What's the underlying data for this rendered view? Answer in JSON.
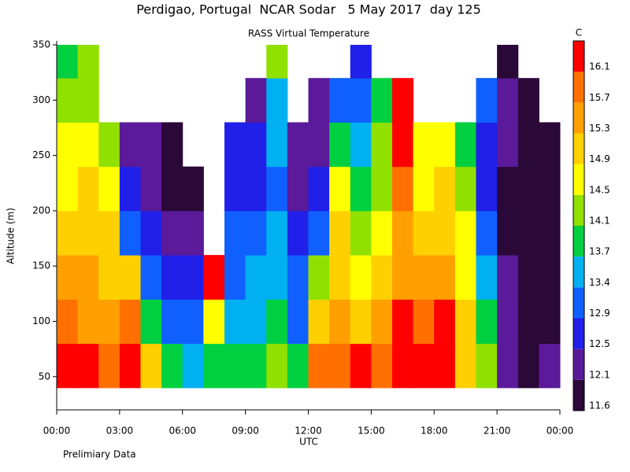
{
  "chart_data": {
    "type": "heatmap",
    "title": "Perdigao, Portugal  NCAR Sodar   5 May 2017  day 125",
    "subtitle": "RASS Virtual Temperature",
    "y_label": "Altitude (m)",
    "x_label": "UTC",
    "colorbar_label": "C",
    "note": "Prelimiary Data",
    "x": [
      0,
      1,
      2,
      3,
      4,
      5,
      6,
      7,
      8,
      9,
      10,
      11,
      12,
      13,
      14,
      15,
      16,
      17,
      18,
      19,
      20,
      21,
      22,
      23
    ],
    "y": [
      40,
      80,
      120,
      160,
      200,
      240,
      280,
      320
    ],
    "z": [
      [
        16.3,
        16.2,
        16.0,
        16.2,
        15.0,
        14.0,
        13.5,
        14.0,
        13.8,
        14.0,
        14.2,
        13.8,
        15.8,
        16.0,
        16.2,
        15.8,
        16.2,
        16.2,
        16.3,
        15.2,
        14.3,
        12.4,
        12.0,
        12.1
      ],
      [
        15.8,
        15.6,
        15.5,
        15.8,
        14.0,
        13.2,
        13.0,
        14.8,
        13.6,
        13.5,
        13.8,
        13.2,
        15.0,
        15.6,
        15.2,
        15.4,
        16.3,
        15.8,
        16.1,
        15.0,
        14.0,
        12.2,
        11.8,
        11.9
      ],
      [
        15.4,
        15.3,
        15.2,
        15.0,
        13.0,
        12.8,
        12.5,
        16.2,
        13.2,
        13.6,
        13.6,
        13.0,
        14.2,
        15.2,
        14.8,
        15.0,
        15.6,
        15.3,
        15.5,
        14.8,
        13.5,
        12.1,
        11.8,
        11.6
      ],
      [
        15.0,
        15.1,
        15.0,
        13.2,
        12.6,
        12.3,
        12.2,
        null,
        12.9,
        13.2,
        13.4,
        12.8,
        12.9,
        15.0,
        14.4,
        14.8,
        15.4,
        15.0,
        15.2,
        14.5,
        13.0,
        12.0,
        11.7,
        11.5
      ],
      [
        14.8,
        14.9,
        14.7,
        12.6,
        12.2,
        12.0,
        11.8,
        null,
        12.7,
        12.8,
        13.2,
        12.4,
        12.5,
        14.6,
        14.0,
        14.4,
        15.8,
        14.8,
        14.9,
        14.2,
        12.7,
        11.9,
        11.6,
        11.5
      ],
      [
        14.6,
        14.6,
        14.2,
        12.3,
        12.1,
        12.0,
        null,
        null,
        12.6,
        12.5,
        13.5,
        12.2,
        12.2,
        13.8,
        13.5,
        14.1,
        16.2,
        14.5,
        14.6,
        14.0,
        12.5,
        12.1,
        11.5,
        11.6
      ],
      [
        14.3,
        14.4,
        null,
        null,
        null,
        null,
        null,
        null,
        null,
        12.2,
        13.6,
        null,
        12.1,
        12.9,
        12.9,
        13.9,
        16.3,
        null,
        null,
        null,
        12.9,
        12.2,
        11.7,
        null
      ],
      [
        14.0,
        14.1,
        null,
        null,
        null,
        null,
        null,
        null,
        null,
        null,
        14.2,
        null,
        null,
        null,
        12.5,
        null,
        null,
        null,
        null,
        null,
        null,
        12.0,
        null,
        null
      ]
    ],
    "levels": [
      11.6,
      12.1,
      12.5,
      12.9,
      13.4,
      13.7,
      14.1,
      14.5,
      14.9,
      15.3,
      15.7,
      16.1
    ],
    "colors": [
      "#2a0838",
      "#5a1a9a",
      "#2020e8",
      "#1060ff",
      "#00b0f0",
      "#00d040",
      "#90e000",
      "#ffff00",
      "#ffd000",
      "#ffa000",
      "#ff7000",
      "#ff0000"
    ],
    "xlim": [
      0,
      24
    ],
    "xticks": [
      {
        "value": 0,
        "label": "00:00"
      },
      {
        "value": 3,
        "label": "03:00"
      },
      {
        "value": 6,
        "label": "06:00"
      },
      {
        "value": 9,
        "label": "09:00"
      },
      {
        "value": 12,
        "label": "12:00"
      },
      {
        "value": 15,
        "label": "15:00"
      },
      {
        "value": 18,
        "label": "18:00"
      },
      {
        "value": 21,
        "label": "21:00"
      },
      {
        "value": 24,
        "label": "00:00"
      }
    ],
    "ylim": [
      20,
      350
    ],
    "yticks": [
      50,
      100,
      150,
      200,
      250,
      300,
      350
    ]
  }
}
